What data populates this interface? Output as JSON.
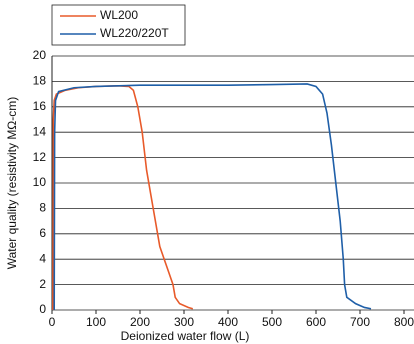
{
  "chart_data": {
    "type": "line",
    "xlabel": "Deionized water flow (L)",
    "ylabel": "Water quality (resistivity MΩ-cm)",
    "xlim": [
      0,
      800
    ],
    "xticks": [
      0,
      100,
      200,
      300,
      400,
      500,
      600,
      700,
      800
    ],
    "ylim": [
      0,
      20
    ],
    "yticks": [
      0,
      2,
      4,
      6,
      8,
      10,
      12,
      14,
      16,
      18,
      20
    ],
    "grid": true,
    "legend": "upper left",
    "series": [
      {
        "name": "WL200",
        "color": "#e85a2a",
        "x": [
          2,
          3,
          5,
          10,
          30,
          60,
          100,
          150,
          175,
          185,
          195,
          205,
          215,
          225,
          235,
          245,
          255,
          265,
          275,
          280,
          290,
          310,
          320
        ],
        "values": [
          0,
          15,
          16.5,
          17,
          17.3,
          17.5,
          17.6,
          17.65,
          17.6,
          17.3,
          16,
          14,
          11,
          9,
          7,
          5,
          4,
          3,
          2,
          1,
          0.5,
          0.2,
          0.1
        ]
      },
      {
        "name": "WL220/220T",
        "color": "#1f5fa8",
        "x": [
          5,
          6,
          8,
          15,
          50,
          100,
          200,
          300,
          400,
          500,
          580,
          600,
          615,
          625,
          635,
          645,
          655,
          662,
          665,
          670,
          690,
          710,
          725
        ],
        "values": [
          0,
          14,
          16.5,
          17.2,
          17.5,
          17.6,
          17.7,
          17.7,
          17.7,
          17.75,
          17.8,
          17.6,
          17,
          15.5,
          13,
          10,
          7,
          4,
          2,
          1,
          0.5,
          0.2,
          0.1
        ]
      }
    ]
  }
}
